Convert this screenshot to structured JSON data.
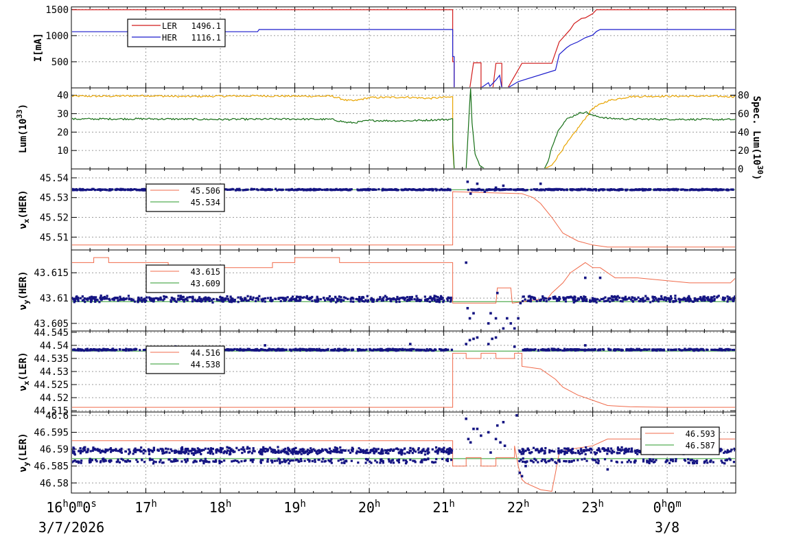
{
  "chart_data": {
    "type": "line",
    "x_ticks": [
      {
        "hour": 16,
        "main": "16",
        "sup": "h",
        "rest": "0",
        "sup2": "m",
        "rest2": "0",
        "sup3": "s"
      },
      {
        "hour": 17,
        "main": "17",
        "sup": "h"
      },
      {
        "hour": 18,
        "main": "18",
        "sup": "h"
      },
      {
        "hour": 19,
        "main": "19",
        "sup": "h"
      },
      {
        "hour": 20,
        "main": "20",
        "sup": "h"
      },
      {
        "hour": 21,
        "main": "21",
        "sup": "h"
      },
      {
        "hour": 22,
        "main": "22",
        "sup": "h"
      },
      {
        "hour": 23,
        "main": "23",
        "sup": "h"
      },
      {
        "hour": 24,
        "main": "0",
        "sup": "h",
        "rest": "0",
        "sup2": "m"
      }
    ],
    "date_labels": [
      {
        "hour": 16,
        "text": "3/7/2026"
      },
      {
        "hour": 24,
        "text": "3/8"
      }
    ],
    "xlim": [
      16,
      24.92
    ],
    "colors": {
      "ler": "#d11a1a",
      "her": "#1a1acc",
      "lum_gold": "#e8a400",
      "lum_green": "#146e14",
      "tune_dots": "#141482",
      "tune_red": "#f06a4a",
      "tune_green": "#2a9a2a"
    },
    "panels": [
      {
        "id": "current",
        "ylabel": "I[mA]",
        "ylim": [
          0,
          1550
        ],
        "yticks": [
          500,
          1000,
          1500
        ],
        "legend": [
          {
            "name": "LER",
            "value": "1496.1",
            "color": "#d11a1a"
          },
          {
            "name": "HER",
            "value": "1116.1",
            "color": "#1a1acc"
          }
        ],
        "series": [
          {
            "name": "LER",
            "color": "#d11a1a",
            "x": [
              16,
              21.12,
              21.12,
              21.14,
              21.14,
              21.35,
              21.4,
              21.5,
              21.5,
              21.66,
              21.7,
              21.78,
              21.78,
              21.86,
              22.05,
              22.45,
              22.55,
              22.7,
              22.75,
              22.85,
              22.9,
              23.0,
              23.05,
              23.2,
              24.92
            ],
            "y": [
              1496,
              1496,
              500,
              500,
              0,
              0,
              480,
              480,
              0,
              0,
              470,
              470,
              0,
              0,
              470,
              470,
              880,
              1120,
              1230,
              1330,
              1340,
              1420,
              1496,
              1496,
              1496
            ]
          },
          {
            "name": "HER",
            "color": "#1a1acc",
            "x": [
              16,
              18.5,
              18.52,
              21.12,
              21.12,
              21.14,
              21.14,
              21.5,
              21.6,
              21.62,
              21.7,
              21.75,
              21.78,
              21.86,
              22.0,
              22.5,
              22.55,
              22.65,
              22.7,
              22.8,
              22.9,
              23.0,
              23.05,
              23.1,
              24.92
            ],
            "y": [
              1075,
              1075,
              1116,
              1116,
              600,
              600,
              0,
              0,
              100,
              30,
              150,
              240,
              0,
              0,
              120,
              340,
              640,
              770,
              820,
              880,
              960,
              1010,
              1080,
              1116,
              1116
            ]
          }
        ]
      },
      {
        "id": "lum",
        "ylabel": "Lum(10^33)",
        "ylim": [
          0,
          44
        ],
        "yticks": [
          10,
          20,
          30,
          40
        ],
        "y2label": "Spec. Lum(10^30)",
        "y2lim": [
          0,
          88
        ],
        "y2ticks": [
          0,
          20,
          40,
          60,
          80
        ],
        "series": [
          {
            "name": "gold",
            "color": "#e8a400",
            "x": [
              16,
              16.5,
              17,
              17.5,
              18,
              18.5,
              19,
              19.5,
              19.7,
              19.8,
              20,
              20.5,
              20.8,
              21.0,
              21.12,
              21.12,
              21.14,
              22.35,
              22.45,
              22.6,
              22.8,
              23.0,
              23.2,
              23.5,
              24,
              24.5,
              24.92
            ],
            "y": [
              39.5,
              39.5,
              39.8,
              39.3,
              39.5,
              39.7,
              39.5,
              39.5,
              37.2,
              37.0,
              38.7,
              39.0,
              38.3,
              38.9,
              39.0,
              12,
              0,
              0,
              2,
              11,
              22,
              33,
              37,
              39.3,
              39.5,
              39.5,
              39.3
            ]
          },
          {
            "name": "green",
            "color": "#146e14",
            "x": [
              16,
              17,
              18,
              19,
              19.5,
              19.7,
              19.8,
              20,
              20.5,
              21.0,
              21.12,
              21.12,
              21.14,
              21.3,
              21.36,
              21.38,
              21.42,
              21.48,
              21.55,
              22.35,
              22.4,
              22.45,
              22.55,
              22.65,
              22.8,
              22.9,
              23.0,
              23.2,
              23.5,
              24,
              24.92
            ],
            "y": [
              27.1,
              27.2,
              26.9,
              27.1,
              26.9,
              25.2,
              25.1,
              26.3,
              26.1,
              26.8,
              27.0,
              16,
              0,
              0,
              44,
              25,
              8,
              2,
              0,
              0,
              4,
              12,
              22,
              27,
              30,
              31,
              29,
              27.5,
              27.0,
              27.0,
              26.8
            ]
          }
        ]
      },
      {
        "id": "nux_her",
        "ylabel": "νx(HER)",
        "ylim": [
          45.5035,
          45.5445
        ],
        "yticks": [
          45.51,
          45.52,
          45.53,
          45.54
        ],
        "legend": [
          {
            "value": "45.506",
            "color": "#f06a4a"
          },
          {
            "value": "45.534",
            "color": "#2a9a2a"
          }
        ],
        "red_line": {
          "x": [
            16,
            21.12,
            21.12,
            22.05,
            22.2,
            22.3,
            22.45,
            22.6,
            22.8,
            23.0,
            23.2,
            24.92
          ],
          "y": [
            45.506,
            45.506,
            45.533,
            45.532,
            45.53,
            45.527,
            45.52,
            45.512,
            45.508,
            45.506,
            45.505,
            45.505
          ]
        },
        "green_level": 45.534,
        "dot_band": {
          "center": 45.534,
          "spread": 0.0004,
          "gap": [
            21.12,
            21.32
          ]
        },
        "scatter": [
          [
            21.32,
            45.538
          ],
          [
            21.36,
            45.532
          ],
          [
            21.4,
            45.534
          ],
          [
            21.45,
            45.537
          ],
          [
            21.55,
            45.533
          ],
          [
            21.6,
            45.534
          ],
          [
            21.7,
            45.535
          ],
          [
            21.8,
            45.536
          ],
          [
            22.0,
            45.534
          ],
          [
            22.3,
            45.537
          ]
        ]
      },
      {
        "id": "nuy_her",
        "ylabel": "νy(HER)",
        "ylim": [
          43.6035,
          43.6195
        ],
        "yticks": [
          43.605,
          43.61,
          43.615
        ],
        "legend": [
          {
            "value": "43.615",
            "color": "#f06a4a"
          },
          {
            "value": "43.609",
            "color": "#2a9a2a"
          }
        ],
        "red_line": {
          "x": [
            16,
            16.3,
            16.3,
            16.5,
            16.5,
            17.3,
            17.3,
            18.7,
            18.7,
            19.0,
            19.0,
            19.6,
            19.6,
            21.12,
            21.12,
            21.7,
            21.72,
            21.9,
            21.92,
            22.4,
            22.45,
            22.6,
            22.7,
            22.8,
            22.9,
            23.0,
            23.1,
            23.3,
            23.6,
            24.3,
            24.85,
            24.92
          ],
          "y": [
            43.617,
            43.617,
            43.618,
            43.618,
            43.617,
            43.617,
            43.616,
            43.616,
            43.617,
            43.617,
            43.618,
            43.618,
            43.617,
            43.617,
            43.609,
            43.609,
            43.612,
            43.612,
            43.609,
            43.61,
            43.611,
            43.613,
            43.615,
            43.616,
            43.617,
            43.616,
            43.616,
            43.614,
            43.614,
            43.613,
            43.613,
            43.614
          ]
        },
        "green_level": 43.6093,
        "dot_band": {
          "center": 43.6098,
          "spread": 0.0007,
          "gap": [
            21.12,
            22.05
          ]
        },
        "scatter": [
          [
            21.3,
            43.617
          ],
          [
            21.32,
            43.608
          ],
          [
            21.35,
            43.606
          ],
          [
            21.4,
            43.607
          ],
          [
            21.6,
            43.605
          ],
          [
            21.63,
            43.607
          ],
          [
            21.7,
            43.606
          ],
          [
            21.72,
            43.611
          ],
          [
            21.8,
            43.604
          ],
          [
            21.85,
            43.606
          ],
          [
            21.9,
            43.605
          ],
          [
            21.95,
            43.604
          ],
          [
            22.0,
            43.606
          ],
          [
            22.03,
            43.609
          ],
          [
            22.9,
            43.614
          ],
          [
            23.1,
            43.614
          ]
        ]
      },
      {
        "id": "nux_ler",
        "ylabel": "νx(LER)",
        "ylim": [
          44.5145,
          44.5455
        ],
        "yticks": [
          44.515,
          44.52,
          44.525,
          44.53,
          44.535,
          44.54,
          44.545
        ],
        "legend": [
          {
            "value": "44.516",
            "color": "#f06a4a"
          },
          {
            "value": "44.538",
            "color": "#2a9a2a"
          }
        ],
        "red_line": {
          "x": [
            16,
            21.12,
            21.12,
            21.3,
            21.3,
            21.5,
            21.5,
            21.7,
            21.7,
            21.95,
            21.95,
            22.05,
            22.05,
            22.3,
            22.5,
            22.6,
            22.8,
            23.0,
            23.2,
            23.5,
            24,
            24.92
          ],
          "y": [
            44.5163,
            44.5163,
            44.537,
            44.537,
            44.535,
            44.535,
            44.537,
            44.537,
            44.535,
            44.535,
            44.537,
            44.537,
            44.532,
            44.531,
            44.527,
            44.524,
            44.521,
            44.519,
            44.517,
            44.5165,
            44.5163,
            44.5163
          ]
        },
        "green_level": 44.5378,
        "dot_band": {
          "center": 44.5383,
          "spread": 0.0004,
          "gap": [
            21.12,
            22.0
          ]
        },
        "scatter": [
          [
            17.4,
            44.5395
          ],
          [
            18.6,
            44.54
          ],
          [
            19.2,
            44.5385
          ],
          [
            20.55,
            44.5405
          ],
          [
            21.3,
            44.5405
          ],
          [
            21.35,
            44.542
          ],
          [
            21.4,
            44.5425
          ],
          [
            21.45,
            44.543
          ],
          [
            21.6,
            44.5405
          ],
          [
            21.65,
            44.5425
          ],
          [
            21.7,
            44.543
          ],
          [
            21.95,
            44.5395
          ],
          [
            22.9,
            44.54
          ]
        ]
      },
      {
        "id": "nuy_ler",
        "ylabel": "νy(LER)",
        "ylim": [
          46.577,
          46.601
        ],
        "yticks": [
          46.58,
          46.585,
          46.59,
          46.595,
          46.6
        ],
        "legend": [
          {
            "value": "46.593",
            "color": "#f06a4a"
          },
          {
            "value": "46.587",
            "color": "#2a9a2a"
          }
        ],
        "red_line": {
          "x": [
            16,
            21.12,
            21.12,
            21.3,
            21.3,
            21.5,
            21.5,
            21.7,
            21.7,
            21.95,
            21.95,
            22.0,
            22.05,
            22.1,
            22.3,
            22.45,
            22.5,
            22.55,
            22.7,
            23.0,
            23.2,
            24.92
          ],
          "y": [
            46.5925,
            46.5925,
            46.585,
            46.585,
            46.5875,
            46.5875,
            46.585,
            46.585,
            46.5875,
            46.5875,
            46.591,
            46.585,
            46.581,
            46.58,
            46.578,
            46.5775,
            46.583,
            46.589,
            46.59,
            46.591,
            46.593,
            46.593
          ]
        },
        "green_level": 46.5872,
        "dot_band": {
          "center": 46.5895,
          "spread": 0.0012,
          "gap": [
            21.12,
            22.0
          ]
        },
        "lower_band": {
          "center": 46.5865,
          "spread": 0.0008
        },
        "scatter": [
          [
            21.3,
            46.599
          ],
          [
            21.33,
            46.593
          ],
          [
            21.36,
            46.592
          ],
          [
            21.4,
            46.596
          ],
          [
            21.45,
            46.596
          ],
          [
            21.5,
            46.594
          ],
          [
            21.6,
            46.595
          ],
          [
            21.63,
            46.589
          ],
          [
            21.7,
            46.593
          ],
          [
            21.72,
            46.597
          ],
          [
            21.76,
            46.592
          ],
          [
            21.8,
            46.598
          ],
          [
            21.82,
            46.591
          ],
          [
            21.98,
            46.6
          ],
          [
            22.02,
            46.583
          ],
          [
            22.05,
            46.582
          ],
          [
            22.1,
            46.585
          ],
          [
            23.2,
            46.584
          ]
        ]
      }
    ]
  }
}
